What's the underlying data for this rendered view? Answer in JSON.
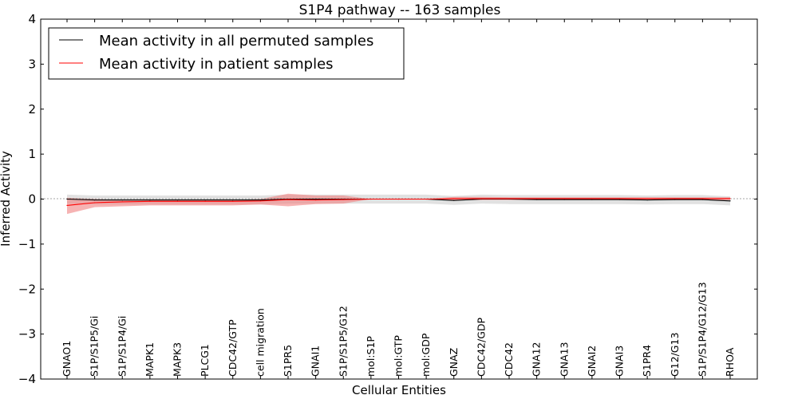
{
  "chart_data": {
    "type": "line",
    "title": "S1P4 pathway -- 163 samples",
    "xlabel": "Cellular Entities",
    "ylabel": "Inferred Activity",
    "ylim": [
      -4,
      4
    ],
    "yticks": [
      {
        "value": 4,
        "label": "4"
      },
      {
        "value": 3,
        "label": "3"
      },
      {
        "value": 2,
        "label": "2"
      },
      {
        "value": 1,
        "label": "1"
      },
      {
        "value": 0,
        "label": "0"
      },
      {
        "value": -1,
        "label": "−1"
      },
      {
        "value": -2,
        "label": "−2"
      },
      {
        "value": -3,
        "label": "−3"
      },
      {
        "value": -4,
        "label": "−4"
      }
    ],
    "categories": [
      "GNAO1",
      "S1P/S1P5/Gi",
      "S1P/S1P4/Gi",
      "MAPK1",
      "MAPK3",
      "PLCG1",
      "CDC42/GTP",
      "cell migration",
      "S1PR5",
      "GNAI1",
      "S1P/S1P5/G12",
      "mol:S1P",
      "mol:GTP",
      "mol:GDP",
      "GNAZ",
      "CDC42/GDP",
      "CDC42",
      "GNA12",
      "GNA13",
      "GNAI2",
      "GNAI3",
      "S1PR4",
      "G12/G13",
      "S1P/S1P4/G12/G13",
      "RHOA"
    ],
    "legend_position": "top-left",
    "series": [
      {
        "name": "Mean activity in all permuted samples",
        "color": "#000000",
        "band_color": "#a9a9a9",
        "values": [
          0.0,
          -0.02,
          -0.02,
          -0.02,
          -0.02,
          -0.02,
          -0.02,
          -0.02,
          0.0,
          0.0,
          0.0,
          0.0,
          0.0,
          0.0,
          -0.03,
          0.0,
          0.0,
          -0.01,
          -0.01,
          -0.01,
          -0.01,
          -0.02,
          -0.01,
          -0.01,
          -0.04
        ],
        "upper": [
          0.1,
          0.08,
          0.08,
          0.08,
          0.08,
          0.08,
          0.08,
          0.08,
          0.1,
          0.1,
          0.1,
          0.1,
          0.1,
          0.1,
          0.07,
          0.1,
          0.09,
          0.09,
          0.09,
          0.09,
          0.09,
          0.08,
          0.09,
          0.09,
          0.06
        ],
        "lower": [
          -0.1,
          -0.12,
          -0.12,
          -0.12,
          -0.12,
          -0.12,
          -0.12,
          -0.12,
          -0.1,
          -0.1,
          -0.1,
          -0.1,
          -0.1,
          -0.1,
          -0.13,
          -0.1,
          -0.11,
          -0.11,
          -0.11,
          -0.11,
          -0.11,
          -0.12,
          -0.11,
          -0.11,
          -0.14
        ]
      },
      {
        "name": "Mean activity in patient samples",
        "color": "#ff0000",
        "band_color": "#f08080",
        "values": [
          -0.14,
          -0.08,
          -0.06,
          -0.05,
          -0.05,
          -0.05,
          -0.05,
          -0.04,
          -0.01,
          -0.02,
          -0.01,
          0.0,
          0.0,
          0.0,
          0.01,
          0.01,
          0.01,
          0.01,
          0.01,
          0.01,
          0.01,
          0.01,
          0.01,
          0.01,
          0.01
        ],
        "upper": [
          0.03,
          0.0,
          -0.02,
          -0.02,
          -0.02,
          -0.02,
          -0.02,
          0.0,
          0.12,
          0.08,
          0.08,
          0.0,
          0.0,
          0.0,
          0.05,
          0.05,
          0.04,
          0.04,
          0.04,
          0.04,
          0.04,
          0.04,
          0.04,
          0.04,
          0.04
        ],
        "lower": [
          -0.33,
          -0.18,
          -0.16,
          -0.14,
          -0.14,
          -0.14,
          -0.14,
          -0.12,
          -0.16,
          -0.11,
          -0.1,
          0.0,
          0.0,
          0.0,
          -0.03,
          -0.02,
          -0.02,
          -0.02,
          -0.02,
          -0.02,
          -0.02,
          -0.02,
          -0.02,
          -0.02,
          -0.02
        ]
      }
    ]
  }
}
